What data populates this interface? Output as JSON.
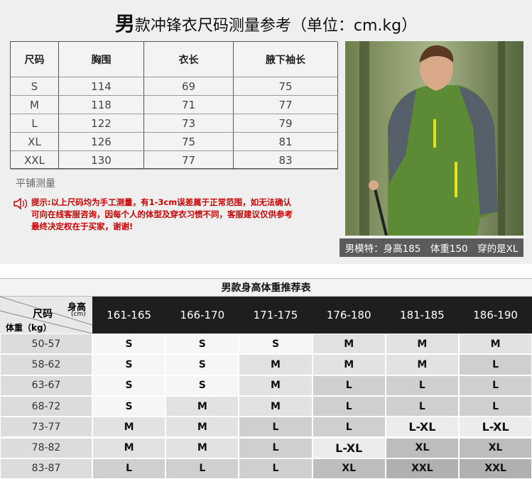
{
  "header": {
    "title_lead": "男",
    "title": "款冲锋衣尺码测量参考（单位：cm.kg）"
  },
  "measure_table": {
    "columns": [
      "尺码",
      "胸围",
      "衣长",
      "腋下袖长"
    ],
    "rows": [
      [
        "S",
        "114",
        "69",
        "75"
      ],
      [
        "M",
        "118",
        "71",
        "77"
      ],
      [
        "L",
        "122",
        "73",
        "79"
      ],
      [
        "XL",
        "126",
        "75",
        "81"
      ],
      [
        "XXL",
        "130",
        "77",
        "83"
      ]
    ]
  },
  "measure_note": "平铺测量",
  "tip_lines": [
    "提示:以上尺码均为手工测量，有1-3cm误差属于正常范围，如无法确认",
    "可向在线客服咨询，因每个人的体型及穿衣习惯不同，客服建议仅供参考",
    "最终决定权在于买家，谢谢!"
  ],
  "model_caption": "男模特：身高185　体重150　穿的是XL",
  "recommend_table": {
    "title": "男款身高体重推荐表",
    "corner": {
      "height": "身高",
      "height_unit": "(cm)",
      "size": "尺码",
      "weight": "体重（kg）"
    },
    "heights": [
      "161-165",
      "166-170",
      "171-175",
      "176-180",
      "181-185",
      "186-190"
    ],
    "rows": [
      {
        "weight": "50-57",
        "sizes": [
          "S",
          "S",
          "S",
          "M",
          "M",
          "M"
        ]
      },
      {
        "weight": "58-62",
        "sizes": [
          "S",
          "S",
          "M",
          "M",
          "M",
          "L"
        ]
      },
      {
        "weight": "63-67",
        "sizes": [
          "S",
          "S",
          "M",
          "L",
          "L",
          "L"
        ]
      },
      {
        "weight": "68-72",
        "sizes": [
          "S",
          "M",
          "M",
          "L",
          "L",
          "L"
        ]
      },
      {
        "weight": "73-77",
        "sizes": [
          "M",
          "M",
          "L",
          "L",
          "L-XL",
          "L-XL"
        ]
      },
      {
        "weight": "78-82",
        "sizes": [
          "M",
          "M",
          "L",
          "L-XL",
          "XL",
          "XL"
        ]
      },
      {
        "weight": "83-87",
        "sizes": [
          "L",
          "L",
          "L",
          "XL",
          "XXL",
          "XXL"
        ]
      }
    ]
  }
}
